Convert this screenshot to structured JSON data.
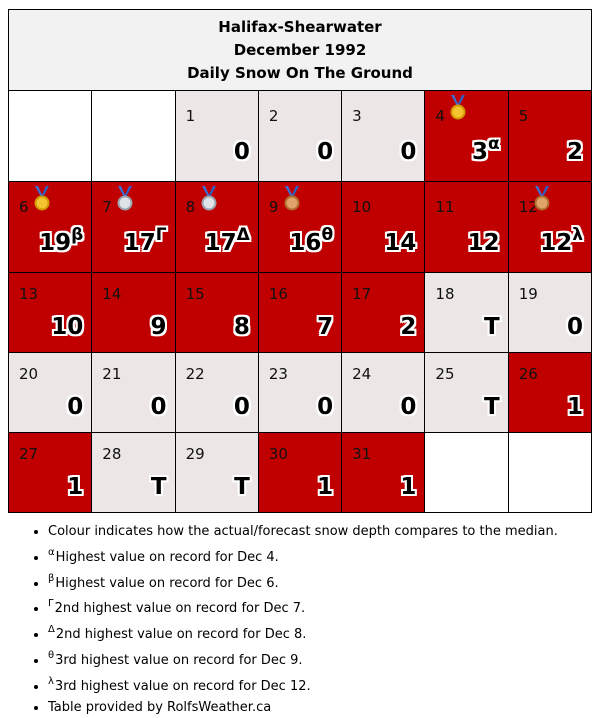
{
  "header": {
    "station": "Halifax-Shearwater",
    "period": "December 1992",
    "subtitle": "Daily Snow On The Ground"
  },
  "colors": {
    "above_median": "#c00000",
    "below_median": "#ece6e6",
    "empty": "#ffffff"
  },
  "weeks": [
    [
      {
        "blank": true
      },
      {
        "blank": true
      },
      {
        "day": "1",
        "value": "0",
        "color": "grey"
      },
      {
        "day": "2",
        "value": "0",
        "color": "grey"
      },
      {
        "day": "3",
        "value": "0",
        "color": "grey"
      },
      {
        "day": "4",
        "value": "3",
        "sup": "α",
        "color": "red",
        "medal": "gold-medal-icon"
      },
      {
        "day": "5",
        "value": "2",
        "color": "red"
      }
    ],
    [
      {
        "day": "6",
        "value": "19",
        "sup": "β",
        "color": "red",
        "medal": "gold-medal-icon"
      },
      {
        "day": "7",
        "value": "17",
        "sup": "Γ",
        "color": "red",
        "medal": "silver-medal-icon"
      },
      {
        "day": "8",
        "value": "17",
        "sup": "Δ",
        "color": "red",
        "medal": "silver-medal-icon"
      },
      {
        "day": "9",
        "value": "16",
        "sup": "θ",
        "color": "red",
        "medal": "bronze-medal-icon"
      },
      {
        "day": "10",
        "value": "14",
        "color": "red"
      },
      {
        "day": "11",
        "value": "12",
        "color": "red"
      },
      {
        "day": "12",
        "value": "12",
        "sup": "λ",
        "color": "red",
        "medal": "bronze-medal-icon"
      }
    ],
    [
      {
        "day": "13",
        "value": "10",
        "color": "red"
      },
      {
        "day": "14",
        "value": "9",
        "color": "red"
      },
      {
        "day": "15",
        "value": "8",
        "color": "red"
      },
      {
        "day": "16",
        "value": "7",
        "color": "red"
      },
      {
        "day": "17",
        "value": "2",
        "color": "red"
      },
      {
        "day": "18",
        "value": "T",
        "color": "grey"
      },
      {
        "day": "19",
        "value": "0",
        "color": "grey"
      }
    ],
    [
      {
        "day": "20",
        "value": "0",
        "color": "grey"
      },
      {
        "day": "21",
        "value": "0",
        "color": "grey"
      },
      {
        "day": "22",
        "value": "0",
        "color": "grey"
      },
      {
        "day": "23",
        "value": "0",
        "color": "grey"
      },
      {
        "day": "24",
        "value": "0",
        "color": "grey"
      },
      {
        "day": "25",
        "value": "T",
        "color": "grey"
      },
      {
        "day": "26",
        "value": "1",
        "color": "red"
      }
    ],
    [
      {
        "day": "27",
        "value": "1",
        "color": "red"
      },
      {
        "day": "28",
        "value": "T",
        "color": "grey"
      },
      {
        "day": "29",
        "value": "T",
        "color": "grey"
      },
      {
        "day": "30",
        "value": "1",
        "color": "red"
      },
      {
        "day": "31",
        "value": "1",
        "color": "red"
      },
      {
        "blank": true
      },
      {
        "blank": true
      }
    ]
  ],
  "notes": [
    {
      "sup": "",
      "text": "Colour indicates how the actual/forecast snow depth compares to the median."
    },
    {
      "sup": "α",
      "text": "Highest value on record for Dec 4."
    },
    {
      "sup": "β",
      "text": "Highest value on record for Dec 6."
    },
    {
      "sup": "Γ",
      "text": "2nd highest value on record for Dec 7."
    },
    {
      "sup": "Δ",
      "text": "2nd highest value on record for Dec 8."
    },
    {
      "sup": "θ",
      "text": "3rd highest value on record for Dec 9."
    },
    {
      "sup": "λ",
      "text": "3rd highest value on record for Dec 12."
    },
    {
      "sup": "",
      "text": "Table provided by RolfsWeather.ca"
    }
  ]
}
